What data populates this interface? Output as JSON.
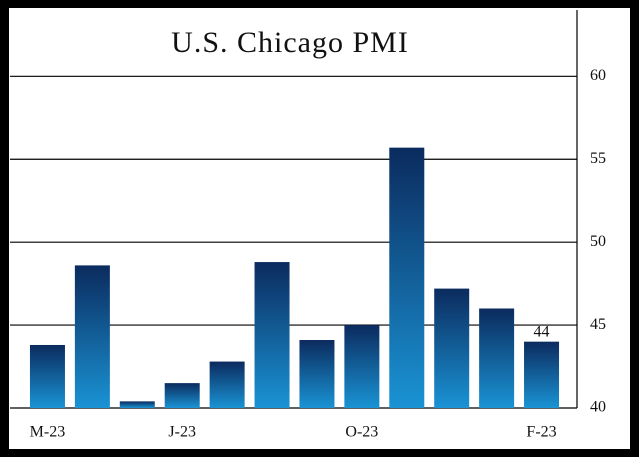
{
  "chart_data": {
    "type": "bar",
    "title": "U.S. Chicago PMI",
    "categories": [
      "M-23",
      null,
      null,
      "J-23",
      null,
      null,
      null,
      "O-23",
      null,
      null,
      null,
      "F-23"
    ],
    "values": [
      43.8,
      48.6,
      40.4,
      41.5,
      42.8,
      48.8,
      44.1,
      45.0,
      55.7,
      47.2,
      46.0,
      44
    ],
    "value_labels": [
      null,
      null,
      null,
      null,
      null,
      null,
      null,
      null,
      null,
      null,
      null,
      "44"
    ],
    "color": [
      "#0b2b5e",
      "#1a93d4"
    ],
    "ylim": [
      40,
      64
    ],
    "yticks": [
      40,
      45,
      50,
      55,
      60
    ],
    "grid": true,
    "y_axis_side": "right"
  }
}
